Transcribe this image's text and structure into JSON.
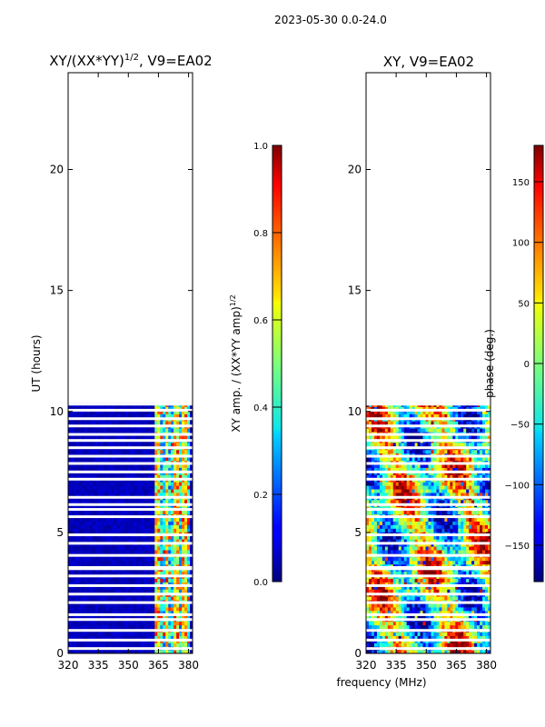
{
  "figure": {
    "suptitle": "2023-05-30 0.0-24.0",
    "xlabel": "frequency (MHz)"
  },
  "chart_data": [
    {
      "type": "heatmap",
      "title_main": "XY/(XX*YY)",
      "title_sup": "1/2",
      "title_rest": ", V9=EA02",
      "ylabel": "UT (hours)",
      "xlim": [
        320,
        382
      ],
      "ylim": [
        0,
        24
      ],
      "xticks": [
        320,
        335,
        350,
        365,
        380
      ],
      "yticks": [
        0,
        5,
        10,
        15,
        20
      ],
      "colormap": "jet",
      "colorbar": {
        "label_main": "XY amp. / (XX*YY amp)",
        "label_sup": "1/2",
        "ticks": [
          0.0,
          0.2,
          0.4,
          0.6,
          0.8,
          1.0
        ],
        "tick_labels": [
          "0.0",
          "0.2",
          "0.4",
          "0.6",
          "0.8",
          "1.0"
        ],
        "range": [
          0,
          1
        ]
      },
      "data_hours_range": [
        0,
        10.35
      ],
      "active_band_mhz": [
        363,
        380
      ],
      "background_value": 0.03,
      "band_value_range": [
        0.2,
        0.8
      ],
      "gap_rows_hours": [
        0.2,
        0.55,
        0.95,
        1.4,
        1.6,
        2.1,
        2.45,
        2.8,
        3.2,
        3.5,
        3.55,
        4.05,
        4.55,
        4.9,
        5.65,
        5.95,
        6.15,
        6.45,
        7.2,
        7.5,
        7.85,
        8.15,
        8.5,
        8.8,
        9.05,
        9.4,
        9.7,
        10.05,
        10.3
      ]
    },
    {
      "type": "heatmap",
      "title": "XY, V9=EA02",
      "xlim": [
        320,
        382
      ],
      "ylim": [
        0,
        24
      ],
      "xticks": [
        320,
        335,
        350,
        365,
        380
      ],
      "yticks": [
        0,
        5,
        10,
        15,
        20
      ],
      "colormap": "jet",
      "colorbar": {
        "label": "phase (deg.)",
        "ticks": [
          -150,
          -100,
          -50,
          0,
          50,
          100,
          150
        ],
        "tick_labels": [
          "−150",
          "−100",
          "−50",
          "0",
          "50",
          "100",
          "150"
        ],
        "range": [
          -180,
          180
        ]
      },
      "data_hours_range": [
        0,
        10.35
      ],
      "gap_rows_hours": [
        0.2,
        0.55,
        0.95,
        1.4,
        1.6,
        2.1,
        2.45,
        2.8,
        3.2,
        3.5,
        3.55,
        4.05,
        4.55,
        4.9,
        5.65,
        5.95,
        6.15,
        6.45,
        7.2,
        7.5,
        7.85,
        8.15,
        8.5,
        8.8,
        9.05,
        9.4,
        9.7,
        10.05,
        10.3
      ]
    }
  ]
}
